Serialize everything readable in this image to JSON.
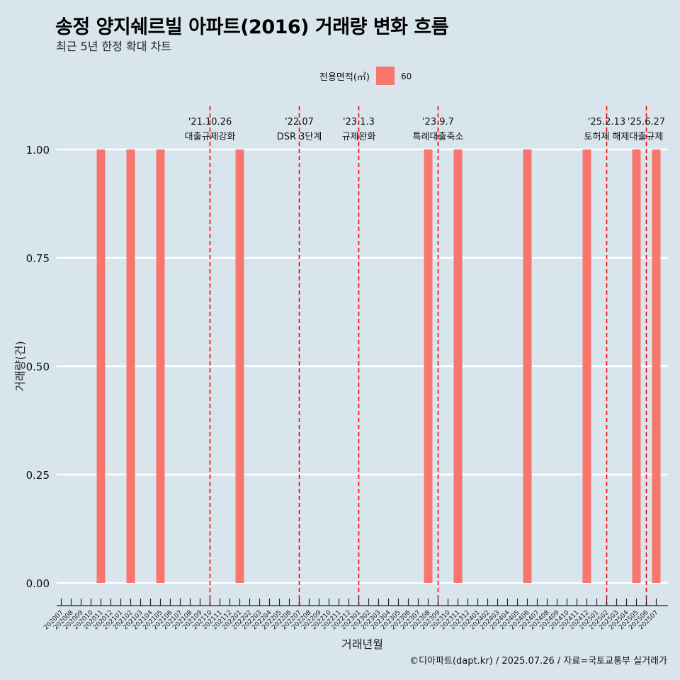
{
  "header": {
    "title": "송정 양지쉐르빌 아파트(2016) 거래량 변화 흐름",
    "subtitle": "최근 5년 한정 확대 차트"
  },
  "caption": "©디아파트(dapt.kr) / 2025.07.26 / 자료=국토교통부 실거래가",
  "colors": {
    "background": "#d9e5ec",
    "bar": "#f8766d",
    "event_line": "#ff0000",
    "grid": "#ffffff"
  },
  "chart_data": {
    "type": "bar",
    "xlabel": "거래년월",
    "ylabel": "거래량(건)",
    "ylim": [
      0,
      1
    ],
    "yticks": [
      "0.00",
      "0.25",
      "0.50",
      "0.75",
      "1.00"
    ],
    "legend": {
      "title": "전용면적(㎡)",
      "position": "top",
      "entries": [
        "60"
      ]
    },
    "categories": [
      "202007",
      "202008",
      "202009",
      "202010",
      "202011",
      "202012",
      "202101",
      "202102",
      "202103",
      "202104",
      "202105",
      "202106",
      "202107",
      "202108",
      "202109",
      "202110",
      "202111",
      "202112",
      "202201",
      "202202",
      "202203",
      "202204",
      "202205",
      "202206",
      "202207",
      "202208",
      "202209",
      "202210",
      "202211",
      "202212",
      "202301",
      "202302",
      "202303",
      "202304",
      "202305",
      "202306",
      "202307",
      "202308",
      "202309",
      "202310",
      "202311",
      "202312",
      "202401",
      "202402",
      "202403",
      "202404",
      "202405",
      "202406",
      "202407",
      "202408",
      "202409",
      "202410",
      "202411",
      "202412",
      "202501",
      "202502",
      "202503",
      "202504",
      "202505",
      "202506",
      "202507"
    ],
    "series": [
      {
        "name": "60",
        "values": [
          0,
          0,
          0,
          0,
          1,
          0,
          0,
          1,
          0,
          0,
          1,
          0,
          0,
          0,
          0,
          0,
          0,
          0,
          1,
          0,
          0,
          0,
          0,
          0,
          0,
          0,
          0,
          0,
          0,
          0,
          0,
          0,
          0,
          0,
          0,
          0,
          0,
          1,
          0,
          0,
          1,
          0,
          0,
          0,
          0,
          0,
          0,
          1,
          0,
          0,
          0,
          0,
          0,
          1,
          0,
          0,
          0,
          0,
          1,
          0,
          1
        ]
      }
    ],
    "events": [
      {
        "x": "202110",
        "date": "'21.10.26",
        "label": "대출규제강화"
      },
      {
        "x": "202207",
        "date": "'22.07",
        "label": "DSR 3단계"
      },
      {
        "x": "202301",
        "date": "'23.1.3",
        "label": "규제완화"
      },
      {
        "x": "202309",
        "date": "'23.9.7",
        "label": "특례대출축소"
      },
      {
        "x": "202502",
        "date": "'25.2.13",
        "label": "토허제 해제"
      },
      {
        "x": "202506",
        "date": "'25.6.27",
        "label": "대출규제"
      }
    ]
  }
}
